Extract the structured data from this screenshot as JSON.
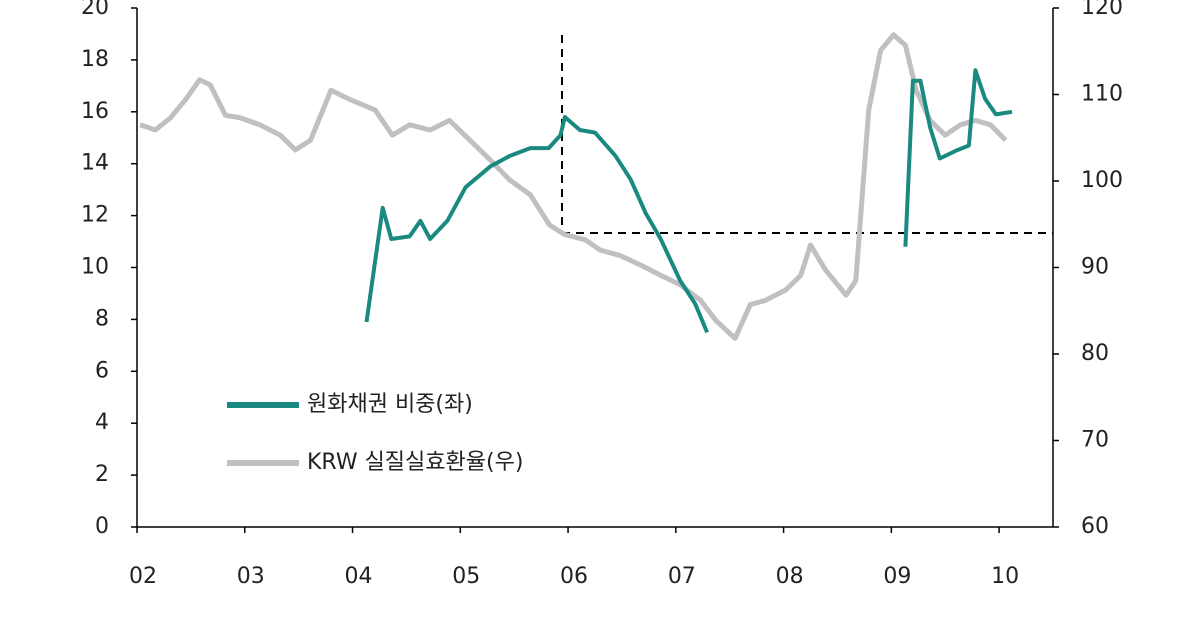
{
  "chart_data": {
    "type": "line",
    "xlim": [
      2002,
      2010.5
    ],
    "xticks": [
      {
        "value": 2002,
        "label": "02"
      },
      {
        "value": 2003,
        "label": "03"
      },
      {
        "value": 2004,
        "label": "04"
      },
      {
        "value": 2005,
        "label": "05"
      },
      {
        "value": 2006,
        "label": "06"
      },
      {
        "value": 2007,
        "label": "07"
      },
      {
        "value": 2008,
        "label": "08"
      },
      {
        "value": 2009,
        "label": "09"
      },
      {
        "value": 2010,
        "label": "10"
      }
    ],
    "ylim": [
      0,
      20
    ],
    "yticks": [
      0,
      2,
      4,
      6,
      8,
      10,
      12,
      14,
      16,
      18,
      20
    ],
    "y2lim": [
      60,
      120
    ],
    "y2ticks": [
      60,
      70,
      80,
      90,
      100,
      110,
      120
    ],
    "legend": "lower left",
    "series": [
      {
        "name": "원화채권 비중(좌)",
        "color": "#1a8a80",
        "x": [
          2004.13,
          2004.28,
          2004.36,
          2004.53,
          2004.63,
          2004.72,
          2004.88,
          2005.05,
          2005.28,
          2005.46,
          2005.65,
          2005.82,
          2005.93,
          2005.97,
          2006.11,
          2006.25,
          2006.44,
          2006.58,
          2006.72,
          2006.86,
          2007.04,
          2007.18,
          2007.29,
          null,
          2009.13,
          2009.2,
          2009.27,
          2009.36,
          2009.45,
          2009.6,
          2009.72,
          2009.78,
          2009.87,
          2009.97,
          2010.12
        ],
        "values": [
          7.9,
          12.3,
          11.1,
          11.2,
          11.8,
          11.1,
          11.8,
          13.1,
          13.9,
          14.3,
          14.6,
          14.6,
          15.1,
          15.8,
          15.3,
          15.2,
          14.3,
          13.4,
          12.1,
          11.1,
          9.5,
          8.6,
          7.5,
          null,
          10.8,
          17.2,
          17.2,
          15.4,
          14.2,
          14.5,
          14.7,
          17.6,
          16.5,
          15.9,
          16.0
        ]
      },
      {
        "name": "KRW 실질실효환율(우)",
        "color": "#c0c0c0",
        "axis": "y2",
        "x": [
          2002.03,
          2002.17,
          2002.31,
          2002.45,
          2002.58,
          2002.68,
          2002.82,
          2002.96,
          2003.14,
          2003.33,
          2003.47,
          2003.61,
          2003.8,
          2003.98,
          2004.21,
          2004.37,
          2004.53,
          2004.72,
          2004.9,
          2005.09,
          2005.28,
          2005.46,
          2005.65,
          2005.83,
          2005.97,
          2006.16,
          2006.3,
          2006.48,
          2006.67,
          2006.86,
          2007.04,
          2007.23,
          2007.37,
          2007.55,
          2007.69,
          2007.83,
          2008.02,
          2008.16,
          2008.25,
          2008.39,
          2008.58,
          2008.67,
          2008.79,
          2008.9,
          2009.02,
          2009.13,
          2009.23,
          2009.36,
          2009.5,
          2009.64,
          2009.78,
          2009.92,
          2010.06
        ],
        "values": [
          106.5,
          105.9,
          107.3,
          109.4,
          111.7,
          111.1,
          107.6,
          107.3,
          106.5,
          105.3,
          103.6,
          104.7,
          110.5,
          109.4,
          108.2,
          105.3,
          106.5,
          105.9,
          107.0,
          104.7,
          102.4,
          100.1,
          98.4,
          94.9,
          93.8,
          93.2,
          92.0,
          91.4,
          90.3,
          89.1,
          88.0,
          86.2,
          83.9,
          81.8,
          85.7,
          86.2,
          87.4,
          89.1,
          92.6,
          89.7,
          86.8,
          88.5,
          108.2,
          115.1,
          116.9,
          115.7,
          110.5,
          107.0,
          105.3,
          106.5,
          107.0,
          106.5,
          104.7
        ]
      }
    ]
  }
}
